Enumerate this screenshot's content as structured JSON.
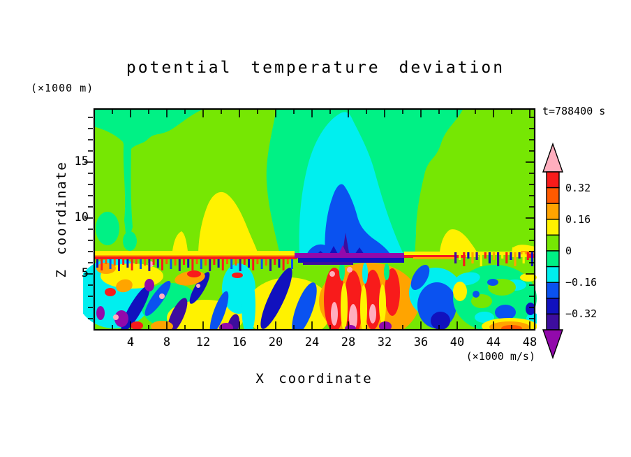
{
  "title": "potential temperature deviation",
  "timestamp": "t=788400 s",
  "y_units_label": "(×1000 m)",
  "x_units_label": "(×1000 m/s)",
  "xlabel": "X coordinate",
  "ylabel": "Z coordinate",
  "palette": {
    "pink": "#FFAEBE",
    "red": "#F81B1B",
    "orangered": "#FF5A00",
    "orange": "#FFA400",
    "yellow": "#FFF200",
    "chartreuse": "#76E703",
    "spring": "#00F185",
    "cyan": "#00EFEF",
    "blue": "#0A52F0",
    "darkblue": "#1111BE",
    "indigo": "#3D0D9E",
    "purple": "#9209AB"
  },
  "chart_data": {
    "type": "heatmap",
    "title": "potential temperature deviation",
    "xlabel": "X coordinate",
    "ylabel": "Z coordinate",
    "time_label": "t=788400 s",
    "x_axis": {
      "unit_label": "(×1000 m/s)",
      "min": 0,
      "max": 48.6,
      "major_tick_labels": [
        4,
        8,
        12,
        16,
        20,
        24,
        28,
        32,
        36,
        40,
        44,
        48
      ],
      "major_tick_step": 4,
      "minor_tick_step": 2
    },
    "z_axis": {
      "unit_label": "(×1000 m)",
      "min": 0,
      "max": 19.8,
      "major_tick_labels": [
        5,
        10,
        15
      ],
      "major_tick_step": 5,
      "minor_tick_step": 1
    },
    "colorbar": {
      "value_range": [
        -0.4,
        0.4
      ],
      "contour_interval": 0.08,
      "labeled_levels": [
        "0.32",
        "0.16",
        "0",
        "−0.16",
        "−0.32"
      ],
      "segment_colors_top_to_bottom": [
        "#F81B1B",
        "#FF5A00",
        "#FFA400",
        "#FFF200",
        "#76E703",
        "#00F185",
        "#00EFEF",
        "#0A52F0",
        "#1111BE",
        "#3D0D9E"
      ],
      "over_color": "#FFAEBE",
      "under_color": "#9209AB"
    },
    "features": [
      "near-uniform weak positive anomaly (green, 0 to 0.08) fills the region above z≈6.5",
      "broad cold dome (−0.08 to −0.16, cyan) rising from the interface near x≈22–34, topped near z≈16",
      "cold core (−0.16 to −0.32, blue) inside the dome near x≈25–31, z≈7–10 with dark-blue peaks at its base",
      "thin strong-negative strip (purple, < −0.4) along the interface beneath the dome, x≈22–35",
      "warm yellow patches (0.08–0.16) above the interface near x≈11–18 and x≈38–42 and at the far right edge",
      "sharp warm interface line (red/orange, > 0.3) at z≈6.4 with Kelvin–Helmholtz billow fringes",
      "turbulent layer below z≈6.4: interleaved warm plumes (red/orange with pink > 0.4 cores near x≈25–31) and cold streaks (blue/navy/purple < −0.24), over yellow-green background",
      "quieter green zone with scattered blue eddies and a warm orange pocket near the bottom at x≈42–47"
    ]
  }
}
